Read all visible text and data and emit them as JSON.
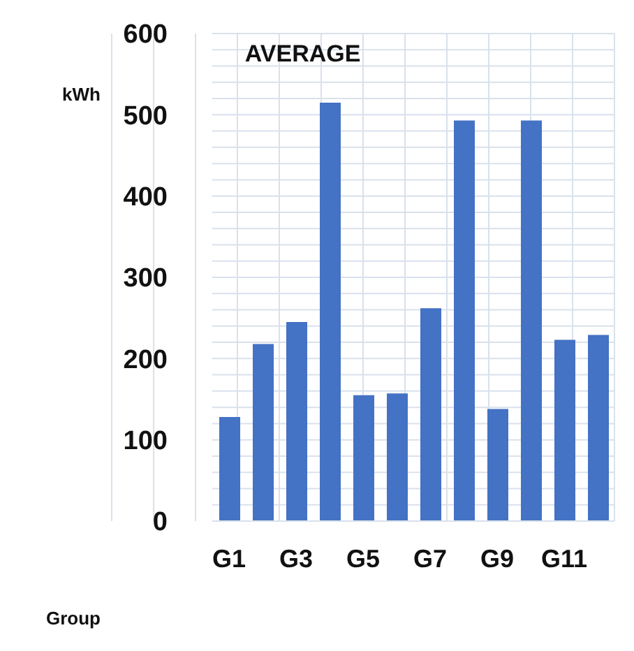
{
  "chart_data": {
    "type": "bar",
    "title": "AVERAGE",
    "xlabel": "Group",
    "ylabel": "kWh",
    "categories": [
      "G1",
      null,
      "G3",
      null,
      "G5",
      null,
      "G7",
      null,
      "G9",
      null,
      "G11",
      null
    ],
    "values": [
      128,
      218,
      245,
      515,
      155,
      157,
      262,
      493,
      138,
      493,
      223,
      229
    ],
    "color": "#4472c4",
    "ylim": [
      0,
      600
    ],
    "yticks": [
      0,
      {
        "value": 20,
        "label": null
      },
      {
        "value": 40,
        "label": null
      },
      {
        "value": 60,
        "label": null
      },
      {
        "value": 80,
        "label": null
      },
      100,
      {
        "value": 120,
        "label": null
      },
      {
        "value": 140,
        "label": null
      },
      {
        "value": 160,
        "label": null
      },
      {
        "value": 180,
        "label": null
      },
      200,
      {
        "value": 220,
        "label": null
      },
      {
        "value": 240,
        "label": null
      },
      {
        "value": 260,
        "label": null
      },
      {
        "value": 280,
        "label": null
      },
      300,
      {
        "value": 320,
        "label": null
      },
      {
        "value": 340,
        "label": null
      },
      {
        "value": 360,
        "label": null
      },
      {
        "value": 380,
        "label": null
      },
      400,
      {
        "value": 420,
        "label": null
      },
      {
        "value": 440,
        "label": null
      },
      {
        "value": 460,
        "label": null
      },
      {
        "value": 480,
        "label": null
      },
      500,
      {
        "value": 520,
        "label": null
      },
      {
        "value": 540,
        "label": null
      },
      {
        "value": 560,
        "label": null
      },
      {
        "value": 580,
        "label": null
      },
      600
    ],
    "grid": true
  }
}
